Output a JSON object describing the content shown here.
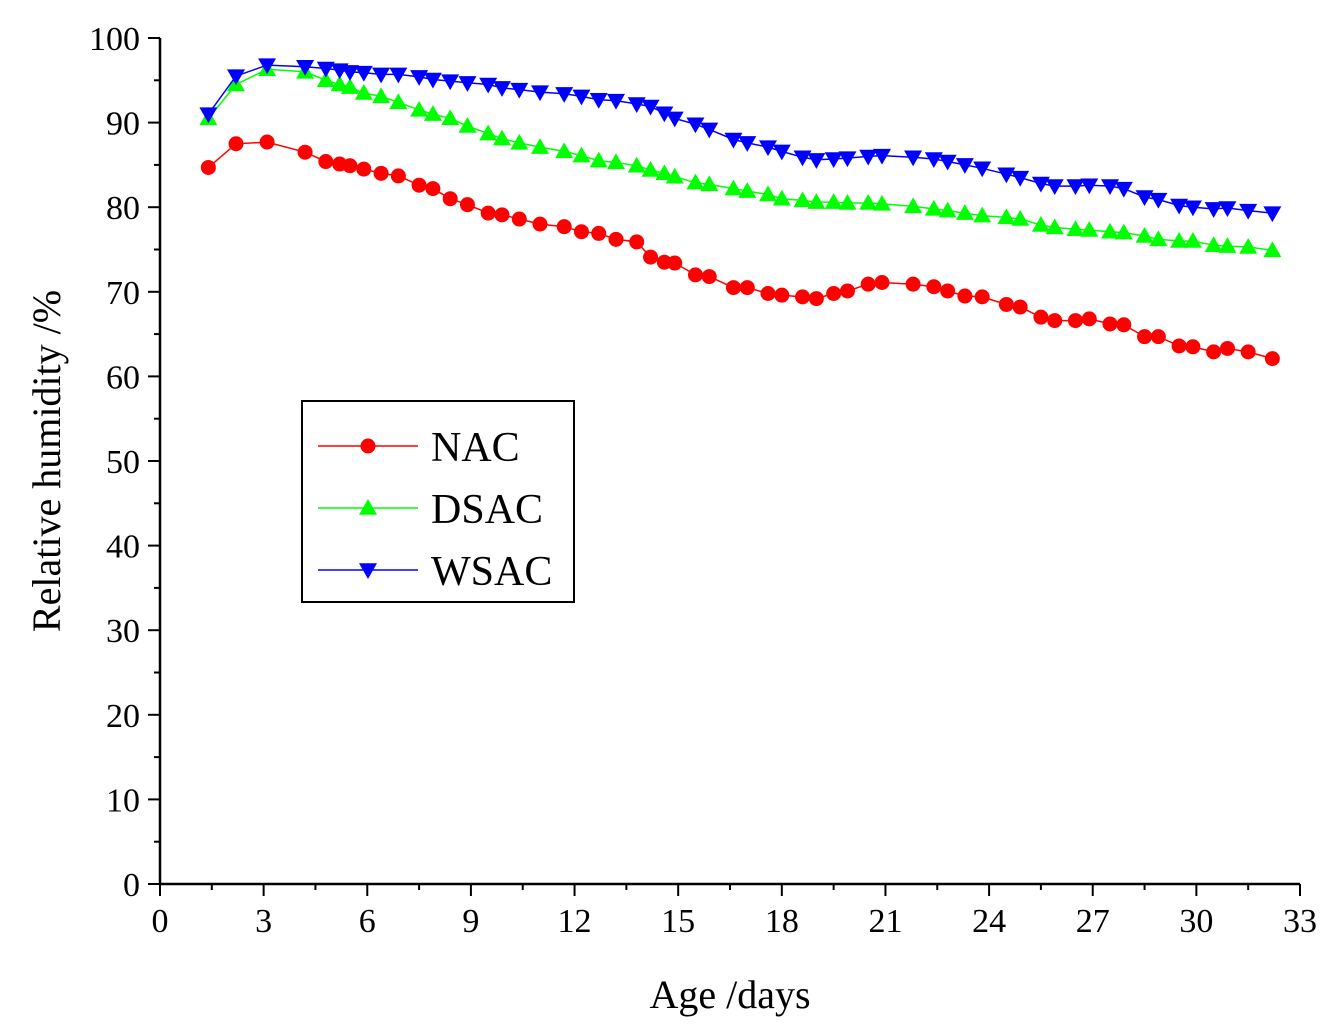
{
  "chart_data": {
    "type": "line",
    "title": "",
    "xlabel": "Age /days",
    "ylabel": "Relative humidity /%",
    "xlim": [
      0,
      33
    ],
    "ylim": [
      0,
      100
    ],
    "xticks": [
      0,
      3,
      6,
      9,
      12,
      15,
      18,
      21,
      24,
      27,
      30,
      33
    ],
    "yticks": [
      0,
      10,
      20,
      30,
      40,
      50,
      60,
      70,
      80,
      90,
      100
    ],
    "legend_position": "center-left",
    "series": [
      {
        "name": "NAC",
        "color": "#ff0000",
        "marker": "circle",
        "x": [
          1.4,
          2.2,
          3.1,
          4.2,
          4.8,
          5.2,
          5.5,
          5.9,
          6.4,
          6.9,
          7.5,
          7.9,
          8.4,
          8.9,
          9.5,
          9.9,
          10.4,
          11.0,
          11.7,
          12.2,
          12.7,
          13.2,
          13.8,
          14.2,
          14.6,
          14.9,
          15.5,
          15.9,
          16.6,
          17.0,
          17.6,
          18.0,
          18.6,
          19.0,
          19.5,
          19.9,
          20.5,
          20.9,
          21.8,
          22.4,
          22.8,
          23.3,
          23.8,
          24.5,
          24.9,
          25.5,
          25.9,
          26.5,
          26.9,
          27.5,
          27.9,
          28.5,
          28.9,
          29.5,
          29.9,
          30.5,
          30.9,
          31.5,
          32.2
        ],
        "y": [
          84.7,
          87.5,
          87.7,
          86.5,
          85.4,
          85.1,
          84.9,
          84.5,
          84.0,
          83.7,
          82.6,
          82.2,
          81.0,
          80.3,
          79.3,
          79.1,
          78.6,
          78.0,
          77.7,
          77.1,
          76.9,
          76.2,
          75.9,
          74.1,
          73.5,
          73.4,
          72.0,
          71.8,
          70.5,
          70.5,
          69.8,
          69.6,
          69.4,
          69.2,
          69.8,
          70.1,
          70.9,
          71.1,
          70.9,
          70.6,
          70.1,
          69.5,
          69.4,
          68.5,
          68.2,
          67.0,
          66.6,
          66.6,
          66.8,
          66.2,
          66.1,
          64.7,
          64.7,
          63.6,
          63.5,
          62.9,
          63.3,
          62.9,
          62.1
        ]
      },
      {
        "name": "DSAC",
        "color": "#00ff00",
        "marker": "triangle-up",
        "x": [
          1.4,
          2.2,
          3.1,
          4.2,
          4.8,
          5.2,
          5.5,
          5.9,
          6.4,
          6.9,
          7.5,
          7.9,
          8.4,
          8.9,
          9.5,
          9.9,
          10.4,
          11.0,
          11.7,
          12.2,
          12.7,
          13.2,
          13.8,
          14.2,
          14.6,
          14.9,
          15.5,
          15.9,
          16.6,
          17.0,
          17.6,
          18.0,
          18.6,
          19.0,
          19.5,
          19.9,
          20.5,
          20.9,
          21.8,
          22.4,
          22.8,
          23.3,
          23.8,
          24.5,
          24.9,
          25.5,
          25.9,
          26.5,
          26.9,
          27.5,
          27.9,
          28.5,
          28.9,
          29.5,
          29.9,
          30.5,
          30.9,
          31.5,
          32.2
        ],
        "y": [
          90.5,
          94.5,
          96.3,
          96.0,
          95.0,
          94.5,
          94.2,
          93.5,
          93.1,
          92.4,
          91.5,
          91.0,
          90.5,
          89.6,
          88.7,
          88.1,
          87.6,
          87.1,
          86.6,
          86.1,
          85.5,
          85.3,
          84.9,
          84.4,
          84.0,
          83.6,
          82.9,
          82.7,
          82.2,
          81.9,
          81.5,
          81.0,
          80.8,
          80.6,
          80.6,
          80.5,
          80.5,
          80.4,
          80.1,
          79.8,
          79.6,
          79.3,
          79.0,
          78.8,
          78.6,
          77.9,
          77.6,
          77.4,
          77.3,
          77.1,
          77.0,
          76.6,
          76.2,
          76.0,
          76.0,
          75.5,
          75.4,
          75.3,
          74.9
        ]
      },
      {
        "name": "WSAC",
        "color": "#0000ff",
        "marker": "triangle-down",
        "x": [
          1.4,
          2.2,
          3.1,
          4.2,
          4.8,
          5.2,
          5.5,
          5.9,
          6.4,
          6.9,
          7.5,
          7.9,
          8.4,
          8.9,
          9.5,
          9.9,
          10.4,
          11.0,
          11.7,
          12.2,
          12.7,
          13.2,
          13.8,
          14.2,
          14.6,
          14.9,
          15.5,
          15.9,
          16.6,
          17.0,
          17.6,
          18.0,
          18.6,
          19.0,
          19.5,
          19.9,
          20.5,
          20.9,
          21.8,
          22.4,
          22.8,
          23.3,
          23.8,
          24.5,
          24.9,
          25.5,
          25.9,
          26.5,
          26.9,
          27.5,
          27.9,
          28.5,
          28.9,
          29.5,
          29.9,
          30.5,
          30.9,
          31.5,
          32.2
        ],
        "y": [
          91.0,
          95.5,
          96.8,
          96.6,
          96.4,
          96.2,
          96.0,
          95.9,
          95.7,
          95.7,
          95.4,
          95.1,
          94.9,
          94.7,
          94.5,
          94.1,
          93.9,
          93.6,
          93.4,
          93.1,
          92.7,
          92.6,
          92.2,
          91.9,
          91.1,
          90.5,
          89.8,
          89.2,
          88.0,
          87.6,
          87.1,
          86.6,
          85.9,
          85.6,
          85.7,
          85.8,
          86.0,
          86.1,
          85.9,
          85.7,
          85.4,
          85.0,
          84.6,
          83.9,
          83.5,
          82.8,
          82.5,
          82.5,
          82.6,
          82.5,
          82.2,
          81.2,
          80.9,
          80.2,
          80.0,
          79.8,
          79.9,
          79.6,
          79.3
        ]
      }
    ]
  }
}
